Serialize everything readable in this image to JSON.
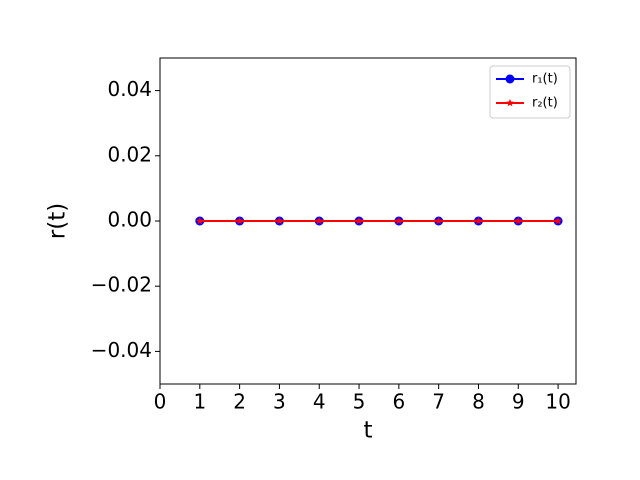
{
  "chart_data": {
    "type": "line",
    "xlabel": "t",
    "ylabel": "r(t)",
    "x": [
      1,
      2,
      3,
      4,
      5,
      6,
      7,
      8,
      9,
      10
    ],
    "series": [
      {
        "name": "r₁(t)",
        "color": "#0000ff",
        "marker": "circle",
        "values": [
          0,
          0,
          0,
          0,
          0,
          0,
          0,
          0,
          0,
          0
        ]
      },
      {
        "name": "r₂(t)",
        "color": "#ff0000",
        "marker": "star",
        "values": [
          0,
          0,
          0,
          0,
          0,
          0,
          0,
          0,
          0,
          0
        ]
      }
    ],
    "xlim": [
      0,
      10.45
    ],
    "ylim": [
      -0.05,
      0.05
    ],
    "xticks": [
      0,
      1,
      2,
      3,
      4,
      5,
      6,
      7,
      8,
      9,
      10
    ],
    "yticks": [
      {
        "value": -0.04,
        "label": "−0.04"
      },
      {
        "value": -0.02,
        "label": "−0.02"
      },
      {
        "value": 0,
        "label": "0.00"
      },
      0.02,
      0.04
    ],
    "legend": "upper right",
    "grid": false
  }
}
